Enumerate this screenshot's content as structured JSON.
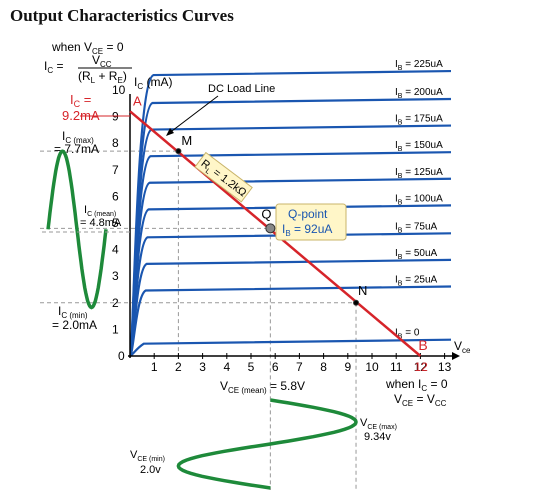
{
  "title": "Output Characteristics Curves",
  "formula": {
    "condition": "when V",
    "condition_sub": "CE",
    "condition_val": " = 0",
    "lhs": "I",
    "lhs_sub": "C",
    "eq": " =",
    "num": "V",
    "num_sub": "CC",
    "den_open": "(R",
    "den_sub1": "L",
    "den_plus": " + R",
    "den_sub2": "E",
    "den_close": ")"
  },
  "colors": {
    "curve": "#1a56b0",
    "load_line": "#d6242a",
    "sine": "#1e8a3a",
    "axis": "#000000",
    "grid": "#cccccc",
    "box_fill": "#fff6c8",
    "box_edge": "#c9b46a"
  },
  "y_axis_label": "I",
  "y_axis_label_sub": "C",
  "y_axis_unit": " (mA)",
  "x_axis_label": "V",
  "x_axis_label_sub": "ce",
  "x_ticks": [
    "1",
    "2",
    "3",
    "4",
    "5",
    "6",
    "7",
    "8",
    "9",
    "10",
    "11",
    "12",
    "13"
  ],
  "y_ticks": [
    "1",
    "2",
    "3",
    "4",
    "5",
    "6",
    "7",
    "8",
    "9",
    "10"
  ],
  "origin_label": "0",
  "curves": [
    {
      "label": "I",
      "sub": "B",
      "val": " = 0",
      "level": 0.5
    },
    {
      "label": "I",
      "sub": "B",
      "val": " = 25uA",
      "level": 2.5
    },
    {
      "label": "I",
      "sub": "B",
      "val": " = 50uA",
      "level": 3.5
    },
    {
      "label": "I",
      "sub": "B",
      "val": " = 75uA",
      "level": 4.5
    },
    {
      "label": "I",
      "sub": "B",
      "val": " = 100uA",
      "level": 5.55
    },
    {
      "label": "I",
      "sub": "B",
      "val": " = 125uA",
      "level": 6.55
    },
    {
      "label": "I",
      "sub": "B",
      "val": " = 150uA",
      "level": 7.55
    },
    {
      "label": "I",
      "sub": "B",
      "val": " = 175uA",
      "level": 8.55
    },
    {
      "label": "I",
      "sub": "B",
      "val": " = 200uA",
      "level": 9.55
    },
    {
      "label": "I",
      "sub": "B",
      "val": " = 225uA",
      "level": 10.6
    }
  ],
  "load_line": {
    "start_ic": 9.2,
    "end_vce": 12,
    "label": "R",
    "label_sub": "L",
    "label_val": " = 1.2kΩ",
    "callout": "DC Load Line"
  },
  "points": {
    "A": {
      "label": "A",
      "vce": 0,
      "ic": 9.2
    },
    "M": {
      "label": "M",
      "vce": 2,
      "ic": 7.7
    },
    "Q": {
      "label": "Q",
      "vce": 5.8,
      "ic": 4.8
    },
    "N": {
      "label": "N",
      "vce": 9.34,
      "ic": 2.0
    },
    "B": {
      "label": "B",
      "vce": 12,
      "ic": 0
    }
  },
  "end_value": "12",
  "ic_label": {
    "line1": "I",
    "line1_sub": "C",
    "line1_val": " =",
    "line2": "9.2mA"
  },
  "ic_max": {
    "line1": "I",
    "line1_sub": "C (max)",
    "line2": "= 7.7mA"
  },
  "ic_mean": {
    "line1": "I",
    "line1_sub": "C (mean)",
    "line2": "= 4.8mA"
  },
  "ic_min": {
    "line1": "I",
    "line1_sub": "C (min)",
    "line2": "= 2.0mA"
  },
  "qpoint": {
    "line1": "Q-point",
    "line2": "I",
    "line2_sub": "B",
    "line2_val": " = 92uA"
  },
  "vce_mean": {
    "text": "V",
    "sub": "CE (mean)",
    "val": " = 5.8V"
  },
  "vce_max": {
    "text": "V",
    "sub": "CE (max)",
    "val": "9.34v"
  },
  "vce_min": {
    "text": "V",
    "sub": "CE (min)",
    "val": "2.0v"
  },
  "ic_zero": {
    "line1": "when I",
    "line1_sub": "C",
    "line1_val": " = 0",
    "line2": "V",
    "line2_sub": "CE",
    "line2_mid": " = V",
    "line2_sub2": "CC"
  }
}
